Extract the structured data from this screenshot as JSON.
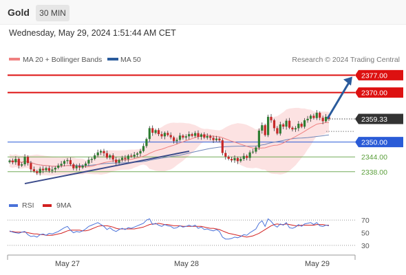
{
  "header": {
    "symbol": "Gold",
    "timeframe": "30 MIN",
    "datetime": "Wednesday, May 29, 2024 1:51:44 AM CET"
  },
  "legend": {
    "ma20_label": "MA 20 + Bollinger Bands",
    "ma50_label": "MA 50",
    "credit": "Research © 2024 Trading Central",
    "rsi_label": "RSI",
    "ma9_label": "9MA"
  },
  "colors": {
    "candle_up": "#2e7d32",
    "candle_down": "#c62828",
    "resistance": "#dd1111",
    "pivot": "#2a5bd7",
    "support": "#5a9e3a",
    "current_price": "#333333",
    "trendline": "#3a4a8a",
    "arrow": "#2a5b9c",
    "bollinger_fill": "#fbd8d8",
    "ma20": "#f08080",
    "ma50": "#6f86b8",
    "rsi": "#4a72d9",
    "rsi_ma9": "#d22020"
  },
  "chart_data": [
    {
      "type": "candlestick",
      "title": "Gold 30 MIN",
      "ylim": [
        2331,
        2381
      ],
      "x_labels": [
        "May 27",
        "May 28",
        "May 29"
      ],
      "levels": [
        {
          "name": "R2",
          "value": 2377.0,
          "label": "2377.00",
          "style": "resistance"
        },
        {
          "name": "R1",
          "value": 2370.0,
          "label": "2370.00",
          "style": "resistance"
        },
        {
          "name": "last",
          "value": 2359.33,
          "label": "2359.33",
          "style": "current_price"
        },
        {
          "name": "pivot",
          "value": 2350.0,
          "label": "2350.00",
          "style": "pivot"
        },
        {
          "name": "S1",
          "value": 2344.0,
          "label": "2344.00",
          "style": "support"
        },
        {
          "name": "S2",
          "value": 2338.0,
          "label": "2338.00",
          "style": "support"
        }
      ],
      "close": [
        2342.5,
        2341.8,
        2343.2,
        2340.5,
        2341,
        2344,
        2341.5,
        2339,
        2338.2,
        2337.5,
        2339.2,
        2338.6,
        2339.5,
        2338.4,
        2338.9,
        2339.6,
        2340.5,
        2341.2,
        2342.3,
        2342.7,
        2341,
        2339.4,
        2340.3,
        2339.7,
        2340.4,
        2341.3,
        2342.8,
        2343.2,
        2344.6,
        2345.8,
        2346.4,
        2345.5,
        2343.7,
        2344.6,
        2342.9,
        2341.7,
        2342.8,
        2343.6,
        2343.1,
        2344.5,
        2344.2,
        2344.9,
        2345.4,
        2346.4,
        2348.4,
        2351.2,
        2355.6,
        2353.7,
        2354.8,
        2353.2,
        2352.3,
        2353.7,
        2352.8,
        2351.9,
        2350.4,
        2350.9,
        2352.6,
        2351.8,
        2352.3,
        2353.2,
        2352.5,
        2353.6,
        2352.1,
        2353.1,
        2351.8,
        2352.4,
        2351.7,
        2350.8,
        2351.4,
        2350.7,
        2345.6,
        2344.1,
        2343.2,
        2342.6,
        2343.5,
        2342.3,
        2343.2,
        2344.4,
        2343.6,
        2345.8,
        2346.1,
        2347.8,
        2354.6,
        2356.8,
        2352.8,
        2360.2,
        2358.8,
        2355.6,
        2353.4,
        2357.1,
        2356.2,
        2358.6,
        2355.8,
        2355.1,
        2355.6,
        2357.4,
        2356.2,
        2358.8,
        2359.4,
        2360.6,
        2359.7,
        2361.8,
        2359.8,
        2358.4,
        2360.2,
        2359.3
      ],
      "rsi": {
        "ylim": [
          20,
          80
        ],
        "ticks": [
          70,
          50,
          30
        ],
        "guides": [
          70,
          30
        ],
        "rsi": [
          53,
          51,
          50,
          49,
          51,
          52,
          47,
          44,
          45,
          43,
          47,
          48,
          46,
          49,
          48,
          50,
          52,
          55,
          58,
          60,
          54,
          50,
          52,
          51,
          53,
          56,
          60,
          62,
          64,
          66,
          63,
          60,
          55,
          58,
          54,
          52,
          55,
          57,
          55,
          58,
          57,
          59,
          61,
          63,
          65,
          70,
          72,
          63,
          65,
          62,
          60,
          63,
          61,
          60,
          57,
          58,
          61,
          59,
          60,
          62,
          60,
          62,
          57,
          59,
          55,
          56,
          54,
          53,
          55,
          52,
          43,
          40,
          40,
          41,
          43,
          42,
          44,
          47,
          46,
          50,
          53,
          56,
          65,
          69,
          60,
          72,
          68,
          62,
          59,
          64,
          62,
          66,
          58,
          57,
          59,
          63,
          60,
          64,
          65,
          66,
          63,
          66,
          61,
          60,
          62,
          61
        ],
        "ma9": [
          52,
          52,
          51,
          51,
          51,
          51,
          50,
          49,
          48,
          48,
          47,
          47,
          46,
          46,
          46,
          47,
          48,
          49,
          51,
          53,
          54,
          54,
          54,
          54,
          53,
          53,
          54,
          56,
          58,
          60,
          61,
          61,
          61,
          60,
          59,
          57,
          56,
          56,
          56,
          56,
          56,
          56,
          57,
          58,
          59,
          61,
          63,
          64,
          64,
          65,
          64,
          63,
          63,
          62,
          61,
          61,
          61,
          60,
          60,
          60,
          60,
          60,
          60,
          60,
          59,
          58,
          57,
          57,
          56,
          55,
          53,
          51,
          49,
          48,
          47,
          46,
          45,
          44,
          43,
          44,
          45,
          47,
          49,
          52,
          55,
          58,
          61,
          63,
          64,
          63,
          63,
          64,
          63,
          62,
          61,
          61,
          62,
          62,
          62,
          62,
          62,
          63,
          63,
          63,
          62,
          62
        ]
      }
    }
  ]
}
